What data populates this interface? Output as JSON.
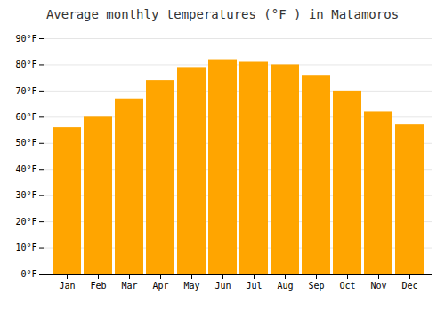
{
  "chart_data": {
    "type": "bar",
    "title": "Average monthly temperatures (°F ) in Matamoros",
    "categories": [
      "Jan",
      "Feb",
      "Mar",
      "Apr",
      "May",
      "Jun",
      "Jul",
      "Aug",
      "Sep",
      "Oct",
      "Nov",
      "Dec"
    ],
    "values": [
      56,
      60,
      67,
      74,
      79,
      82,
      81,
      80,
      76,
      70,
      62,
      57
    ],
    "color": "#FFA500",
    "ylim": [
      0,
      90
    ],
    "yticks": [
      {
        "value": 0,
        "label": "0°F"
      },
      {
        "value": 10,
        "label": "10°F"
      },
      {
        "value": 20,
        "label": "20°F"
      },
      {
        "value": 30,
        "label": "30°F"
      },
      {
        "value": 40,
        "label": "40°F"
      },
      {
        "value": 50,
        "label": "50°F"
      },
      {
        "value": 60,
        "label": "60°F"
      },
      {
        "value": 70,
        "label": "70°F"
      },
      {
        "value": 80,
        "label": "80°F"
      },
      {
        "value": 90,
        "label": "90°F"
      }
    ],
    "grid": true
  }
}
